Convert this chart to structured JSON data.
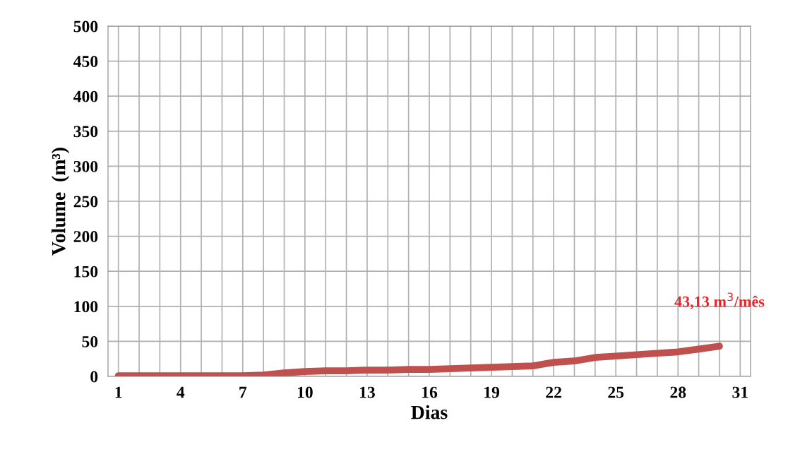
{
  "chart_data": {
    "type": "line",
    "xlabel": "Dias",
    "ylabel": "Volume  (m³)",
    "x": [
      1,
      2,
      3,
      4,
      5,
      6,
      7,
      8,
      9,
      10,
      11,
      12,
      13,
      14,
      15,
      16,
      17,
      18,
      19,
      20,
      21,
      22,
      23,
      24,
      25,
      26,
      27,
      28,
      29,
      30
    ],
    "series": [
      {
        "color": "#c0504d",
        "values": [
          1,
          1,
          1,
          1,
          1,
          1,
          1,
          2,
          5,
          7,
          8,
          8,
          9,
          9,
          10,
          10,
          11,
          12,
          13,
          14,
          15,
          20,
          22,
          27,
          29,
          31,
          33,
          35,
          39,
          43.13
        ]
      }
    ],
    "xlim": [
      0.5,
      31.5
    ],
    "xticks": [
      1,
      {
        "value": 2,
        "label": null
      },
      {
        "value": 3,
        "label": null
      },
      4,
      {
        "value": 5,
        "label": null
      },
      {
        "value": 6,
        "label": null
      },
      7,
      {
        "value": 8,
        "label": null
      },
      {
        "value": 9,
        "label": null
      },
      10,
      {
        "value": 11,
        "label": null
      },
      {
        "value": 12,
        "label": null
      },
      13,
      {
        "value": 14,
        "label": null
      },
      {
        "value": 15,
        "label": null
      },
      16,
      {
        "value": 17,
        "label": null
      },
      {
        "value": 18,
        "label": null
      },
      19,
      {
        "value": 20,
        "label": null
      },
      {
        "value": 21,
        "label": null
      },
      22,
      {
        "value": 23,
        "label": null
      },
      {
        "value": 24,
        "label": null
      },
      25,
      {
        "value": 26,
        "label": null
      },
      {
        "value": 27,
        "label": null
      },
      28,
      {
        "value": 29,
        "label": null
      },
      {
        "value": 30,
        "label": null
      },
      31
    ],
    "ylim": [
      0,
      500
    ],
    "yticks": [
      0,
      50,
      100,
      150,
      200,
      250,
      300,
      350,
      400,
      450,
      500
    ],
    "grid": true,
    "marker": "none",
    "line_style": "solid",
    "annotations": [
      {
        "text": "43,13 m$^{3}$/mês",
        "x": 30,
        "y": 43.13
      }
    ]
  }
}
